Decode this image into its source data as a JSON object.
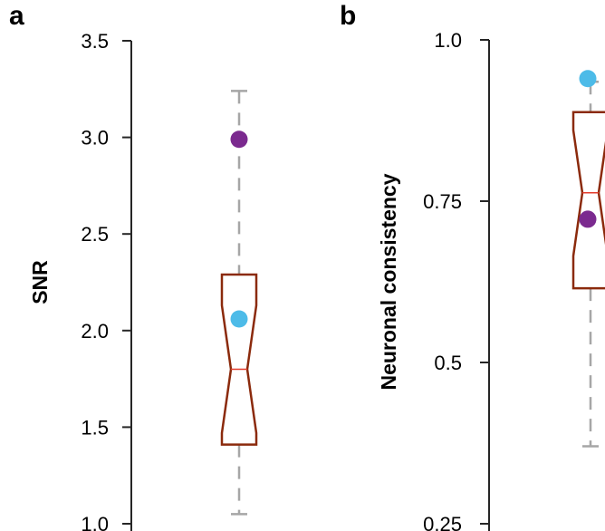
{
  "colors": {
    "box": "#8b2a0c",
    "median": "#e23b2b",
    "whisker": "#a6a6a6",
    "axis": "#262626",
    "purple_point": "#7b2a8f",
    "blue_point": "#4dbbe8"
  },
  "chart_data": [
    {
      "type": "box",
      "panel_label": "a",
      "ylabel": "SNR",
      "ylim": [
        1.0,
        3.5
      ],
      "yticks": [
        "1.0",
        "1.5",
        "2.0",
        "2.5",
        "3.0",
        "3.5"
      ],
      "ytick_values": [
        1.0,
        1.5,
        2.0,
        2.5,
        3.0,
        3.5
      ],
      "box": {
        "whisker_low": 1.05,
        "q1": 1.41,
        "notch_low": 1.47,
        "median": 1.8,
        "notch_high": 2.13,
        "q3": 2.29,
        "whisker_high": 3.24
      },
      "points": [
        {
          "color_key": "purple_point",
          "value": 2.99
        },
        {
          "color_key": "blue_point",
          "value": 2.06
        }
      ]
    },
    {
      "type": "box",
      "panel_label": "b",
      "ylabel": "Neuronal consistency",
      "ylim": [
        0.25,
        1.0
      ],
      "yticks": [
        "0.25",
        "0.5",
        "0.75",
        "1.0"
      ],
      "ytick_values": [
        0.25,
        0.5,
        0.75,
        1.0
      ],
      "box": {
        "whisker_low": 0.37,
        "q1": 0.615,
        "notch_low": 0.665,
        "median": 0.763,
        "notch_high": 0.86,
        "q3": 0.888,
        "whisker_high": 0.935
      },
      "points": [
        {
          "color_key": "blue_point",
          "value": 0.94
        },
        {
          "color_key": "purple_point",
          "value": 0.722
        }
      ]
    }
  ]
}
